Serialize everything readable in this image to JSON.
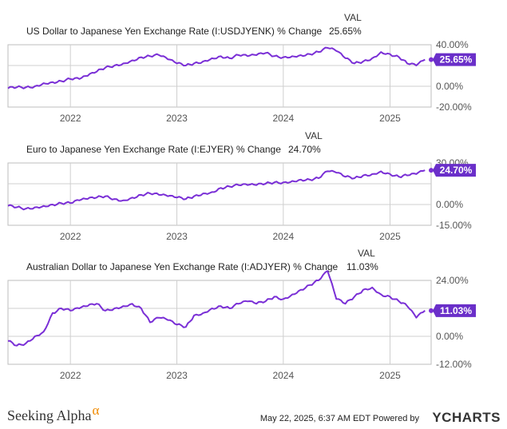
{
  "colors": {
    "line": "#7a2fd6",
    "badge_bg": "#6a2fc9",
    "badge_text": "#ffffff",
    "grid": "#cfcfcf"
  },
  "val_header": "VAL",
  "footer": {
    "brand": "Seeking Alpha",
    "brand_symbol": "α",
    "timestamp": "May 22, 2025, 6:37 AM EDT",
    "powered_by": "Powered by",
    "ycharts": "YCHARTS"
  },
  "chart_data": [
    {
      "type": "line",
      "series_name": "US Dollar to Japanese Yen Exchange Rate (I:USDJYENK) % Change",
      "value_label": "25.65%",
      "badge": "25.65%",
      "ylim": [
        -20,
        40
      ],
      "yticks": [
        40,
        20,
        0,
        -20
      ],
      "ytick_labels": [
        "40.00%",
        "",
        "0.00%",
        "-20.00%"
      ],
      "xticks": [
        "2022",
        "2023",
        "2024",
        "2025"
      ],
      "x": [
        "2021-06-01",
        "2021-07-01",
        "2021-08-01",
        "2021-09-01",
        "2021-10-01",
        "2021-11-01",
        "2021-12-01",
        "2022-01-01",
        "2022-02-01",
        "2022-03-01",
        "2022-04-01",
        "2022-05-01",
        "2022-06-01",
        "2022-07-01",
        "2022-08-01",
        "2022-09-01",
        "2022-10-01",
        "2022-11-01",
        "2022-12-01",
        "2023-01-01",
        "2023-02-01",
        "2023-03-01",
        "2023-04-01",
        "2023-05-01",
        "2023-06-01",
        "2023-07-01",
        "2023-08-01",
        "2023-09-01",
        "2023-10-01",
        "2023-11-01",
        "2023-12-01",
        "2024-01-01",
        "2024-02-01",
        "2024-03-01",
        "2024-04-01",
        "2024-05-01",
        "2024-06-01",
        "2024-07-01",
        "2024-08-01",
        "2024-09-01",
        "2024-10-01",
        "2024-11-01",
        "2024-12-01",
        "2025-01-01",
        "2025-02-01",
        "2025-03-01",
        "2025-04-01",
        "2025-05-01"
      ],
      "values": [
        -2,
        -1,
        -1,
        0,
        3,
        4,
        5,
        7,
        7,
        10,
        14,
        18,
        20,
        22,
        25,
        28,
        29,
        30,
        26,
        22,
        20,
        22,
        24,
        27,
        29,
        27,
        30,
        29,
        30,
        32,
        29,
        28,
        29,
        30,
        31,
        33,
        37,
        34,
        27,
        22,
        24,
        27,
        33,
        31,
        28,
        22,
        20,
        25.65
      ]
    },
    {
      "type": "line",
      "series_name": "Euro to Japanese Yen Exchange Rate (I:EJYER) % Change",
      "value_label": "24.70%",
      "badge": "24.70%",
      "ylim": [
        -15,
        30
      ],
      "yticks": [
        30,
        15,
        0,
        -15
      ],
      "ytick_labels": [
        "30.00%",
        "",
        "0.00%",
        "-15.00%"
      ],
      "xticks": [
        "2022",
        "2023",
        "2024",
        "2025"
      ],
      "x": [
        "2021-06-01",
        "2021-07-01",
        "2021-08-01",
        "2021-09-01",
        "2021-10-01",
        "2021-11-01",
        "2021-12-01",
        "2022-01-01",
        "2022-02-01",
        "2022-03-01",
        "2022-04-01",
        "2022-05-01",
        "2022-06-01",
        "2022-07-01",
        "2022-08-01",
        "2022-09-01",
        "2022-10-01",
        "2022-11-01",
        "2022-12-01",
        "2023-01-01",
        "2023-02-01",
        "2023-03-01",
        "2023-04-01",
        "2023-05-01",
        "2023-06-01",
        "2023-07-01",
        "2023-08-01",
        "2023-09-01",
        "2023-10-01",
        "2023-11-01",
        "2023-12-01",
        "2024-01-01",
        "2024-02-01",
        "2024-03-01",
        "2024-04-01",
        "2024-05-01",
        "2024-06-01",
        "2024-07-01",
        "2024-08-01",
        "2024-09-01",
        "2024-10-01",
        "2024-11-01",
        "2024-12-01",
        "2025-01-01",
        "2025-02-01",
        "2025-03-01",
        "2025-04-01",
        "2025-05-01"
      ],
      "values": [
        -1,
        -2,
        -3,
        -2,
        -1,
        0,
        1,
        1,
        3,
        4,
        5,
        6,
        4,
        3,
        5,
        7,
        8,
        7,
        6,
        5,
        4,
        6,
        8,
        9,
        12,
        13,
        14,
        14,
        14,
        15,
        16,
        16,
        17,
        18,
        18,
        19,
        24,
        23,
        20,
        19,
        21,
        22,
        24,
        22,
        20,
        21,
        22,
        24.7
      ]
    },
    {
      "type": "line",
      "series_name": "Australian Dollar to Japanese Yen Exchange Rate (I:ADJYER) % Change",
      "value_label": "11.03%",
      "badge": "11.03%",
      "ylim": [
        -12,
        24
      ],
      "yticks": [
        24,
        12,
        0,
        -12
      ],
      "ytick_labels": [
        "24.00%",
        "",
        "0.00%",
        "-12.00%"
      ],
      "xticks": [
        "2022",
        "2023",
        "2024",
        "2025"
      ],
      "x": [
        "2021-06-01",
        "2021-07-01",
        "2021-08-01",
        "2021-09-01",
        "2021-10-01",
        "2021-11-01",
        "2021-12-01",
        "2022-01-01",
        "2022-02-01",
        "2022-03-01",
        "2022-04-01",
        "2022-05-01",
        "2022-06-01",
        "2022-07-01",
        "2022-08-01",
        "2022-09-01",
        "2022-10-01",
        "2022-11-01",
        "2022-12-01",
        "2023-01-01",
        "2023-02-01",
        "2023-03-01",
        "2023-04-01",
        "2023-05-01",
        "2023-06-01",
        "2023-07-01",
        "2023-08-01",
        "2023-09-01",
        "2023-10-01",
        "2023-11-01",
        "2023-12-01",
        "2024-01-01",
        "2024-02-01",
        "2024-03-01",
        "2024-04-01",
        "2024-05-01",
        "2024-06-01",
        "2024-07-01",
        "2024-08-01",
        "2024-09-01",
        "2024-10-01",
        "2024-11-01",
        "2024-12-01",
        "2025-01-01",
        "2025-02-01",
        "2025-03-01",
        "2025-04-01",
        "2025-05-01"
      ],
      "values": [
        -2,
        -4,
        -3,
        0,
        2,
        10,
        12,
        11,
        12,
        13,
        14,
        11,
        12,
        13,
        14,
        12,
        6,
        8,
        7,
        5,
        4,
        9,
        10,
        12,
        13,
        12,
        14,
        15,
        14,
        15,
        17,
        16,
        18,
        20,
        22,
        24,
        28,
        16,
        14,
        17,
        20,
        21,
        18,
        17,
        15,
        13,
        8,
        11.03
      ]
    }
  ]
}
